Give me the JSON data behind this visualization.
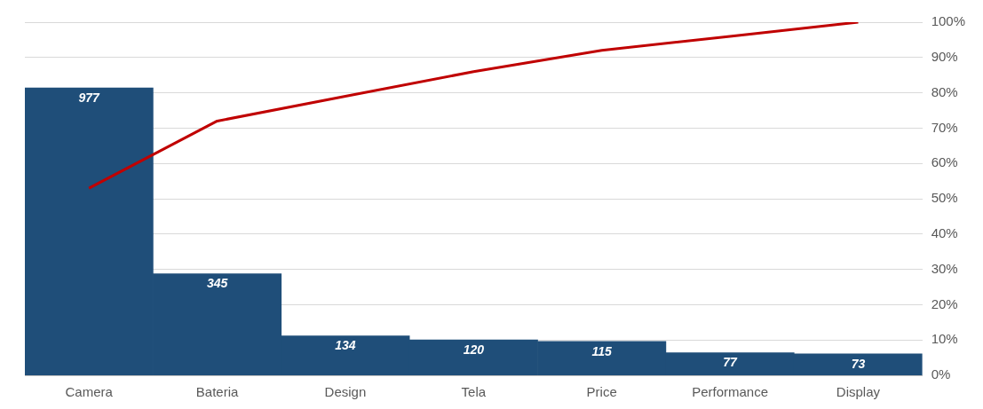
{
  "chart_data": {
    "type": "bar",
    "categories": [
      "Camera",
      "Bateria",
      "Design",
      "Tela",
      "Price",
      "Performance",
      "Display"
    ],
    "series": [
      {
        "color": "#1f4e79",
        "values": [
          977,
          345,
          134,
          120,
          115,
          77,
          73
        ],
        "value_labels": [
          "977",
          "345",
          "134",
          "120",
          "115",
          "77",
          "73"
        ]
      },
      {
        "type": "line",
        "axis": "y2",
        "color": "#c00000",
        "values": [
          53,
          72,
          79,
          86,
          92,
          96,
          100
        ]
      }
    ],
    "y2lim": [
      0,
      100
    ],
    "y2ticks": [
      {
        "value": 0,
        "label": "0%"
      },
      {
        "value": 10,
        "label": "10%"
      },
      {
        "value": 20,
        "label": "20%"
      },
      {
        "value": 30,
        "label": "30%"
      },
      {
        "value": 40,
        "label": "40%"
      },
      {
        "value": 50,
        "label": "50%"
      },
      {
        "value": 60,
        "label": "60%"
      },
      {
        "value": 70,
        "label": "70%"
      },
      {
        "value": 80,
        "label": "80%"
      },
      {
        "value": 90,
        "label": "90%"
      },
      {
        "value": 100,
        "label": "100%"
      }
    ],
    "grid": "y",
    "legend": false,
    "marker": "none"
  }
}
